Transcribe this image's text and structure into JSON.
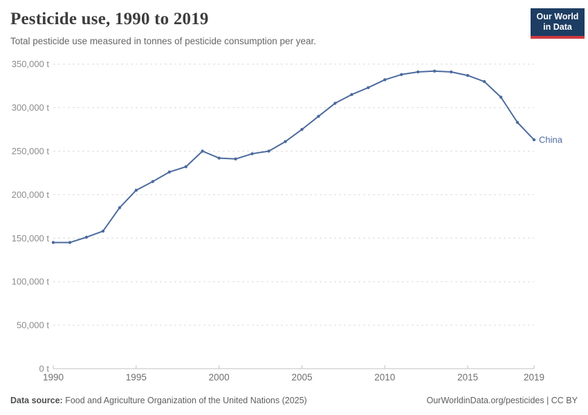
{
  "header": {
    "title": "Pesticide use, 1990 to 2019",
    "subtitle": "Total pesticide use measured in tonnes of pesticide consumption per year.",
    "logo": {
      "line1": "Our World",
      "line2": "in Data"
    }
  },
  "footer": {
    "source_label": "Data source:",
    "source_text": " Food and Agriculture Organization of the United Nations (2025)",
    "right_text": "OurWorldinData.org/pesticides | CC BY"
  },
  "colors": {
    "logo_bg": "#1d3d63",
    "logo_stripe": "#cf3a40",
    "line": "#4c6a9e",
    "grid": "#dcdcdc",
    "axis": "#c2c2c2",
    "y_tick_label": "#8c8c8c",
    "x_tick_label": "#6e6e6e"
  },
  "chart_data": {
    "type": "line",
    "title": "Pesticide use, 1990 to 2019",
    "subtitle": "Total pesticide use measured in tonnes of pesticide consumption per year.",
    "unit": "t",
    "xlabel": "",
    "ylabel": "",
    "grid": true,
    "legend_position": "end-of-line",
    "ylim": [
      0,
      350000
    ],
    "ytick_step": 50000,
    "xticks": [
      1990,
      1995,
      2000,
      2005,
      2010,
      2015,
      2019
    ],
    "x": [
      1990,
      1991,
      1992,
      1993,
      1994,
      1995,
      1996,
      1997,
      1998,
      1999,
      2000,
      2001,
      2002,
      2003,
      2004,
      2005,
      2006,
      2007,
      2008,
      2009,
      2010,
      2011,
      2012,
      2013,
      2014,
      2015,
      2016,
      2017,
      2018,
      2019
    ],
    "series": [
      {
        "name": "China",
        "values": [
          145000,
          145000,
          151000,
          158000,
          185000,
          205000,
          215000,
          226000,
          232000,
          250000,
          242000,
          241000,
          247000,
          250000,
          261000,
          275000,
          290000,
          305000,
          315000,
          323000,
          332000,
          338000,
          341000,
          342000,
          341000,
          337000,
          330000,
          312000,
          283000,
          263000
        ]
      }
    ]
  }
}
